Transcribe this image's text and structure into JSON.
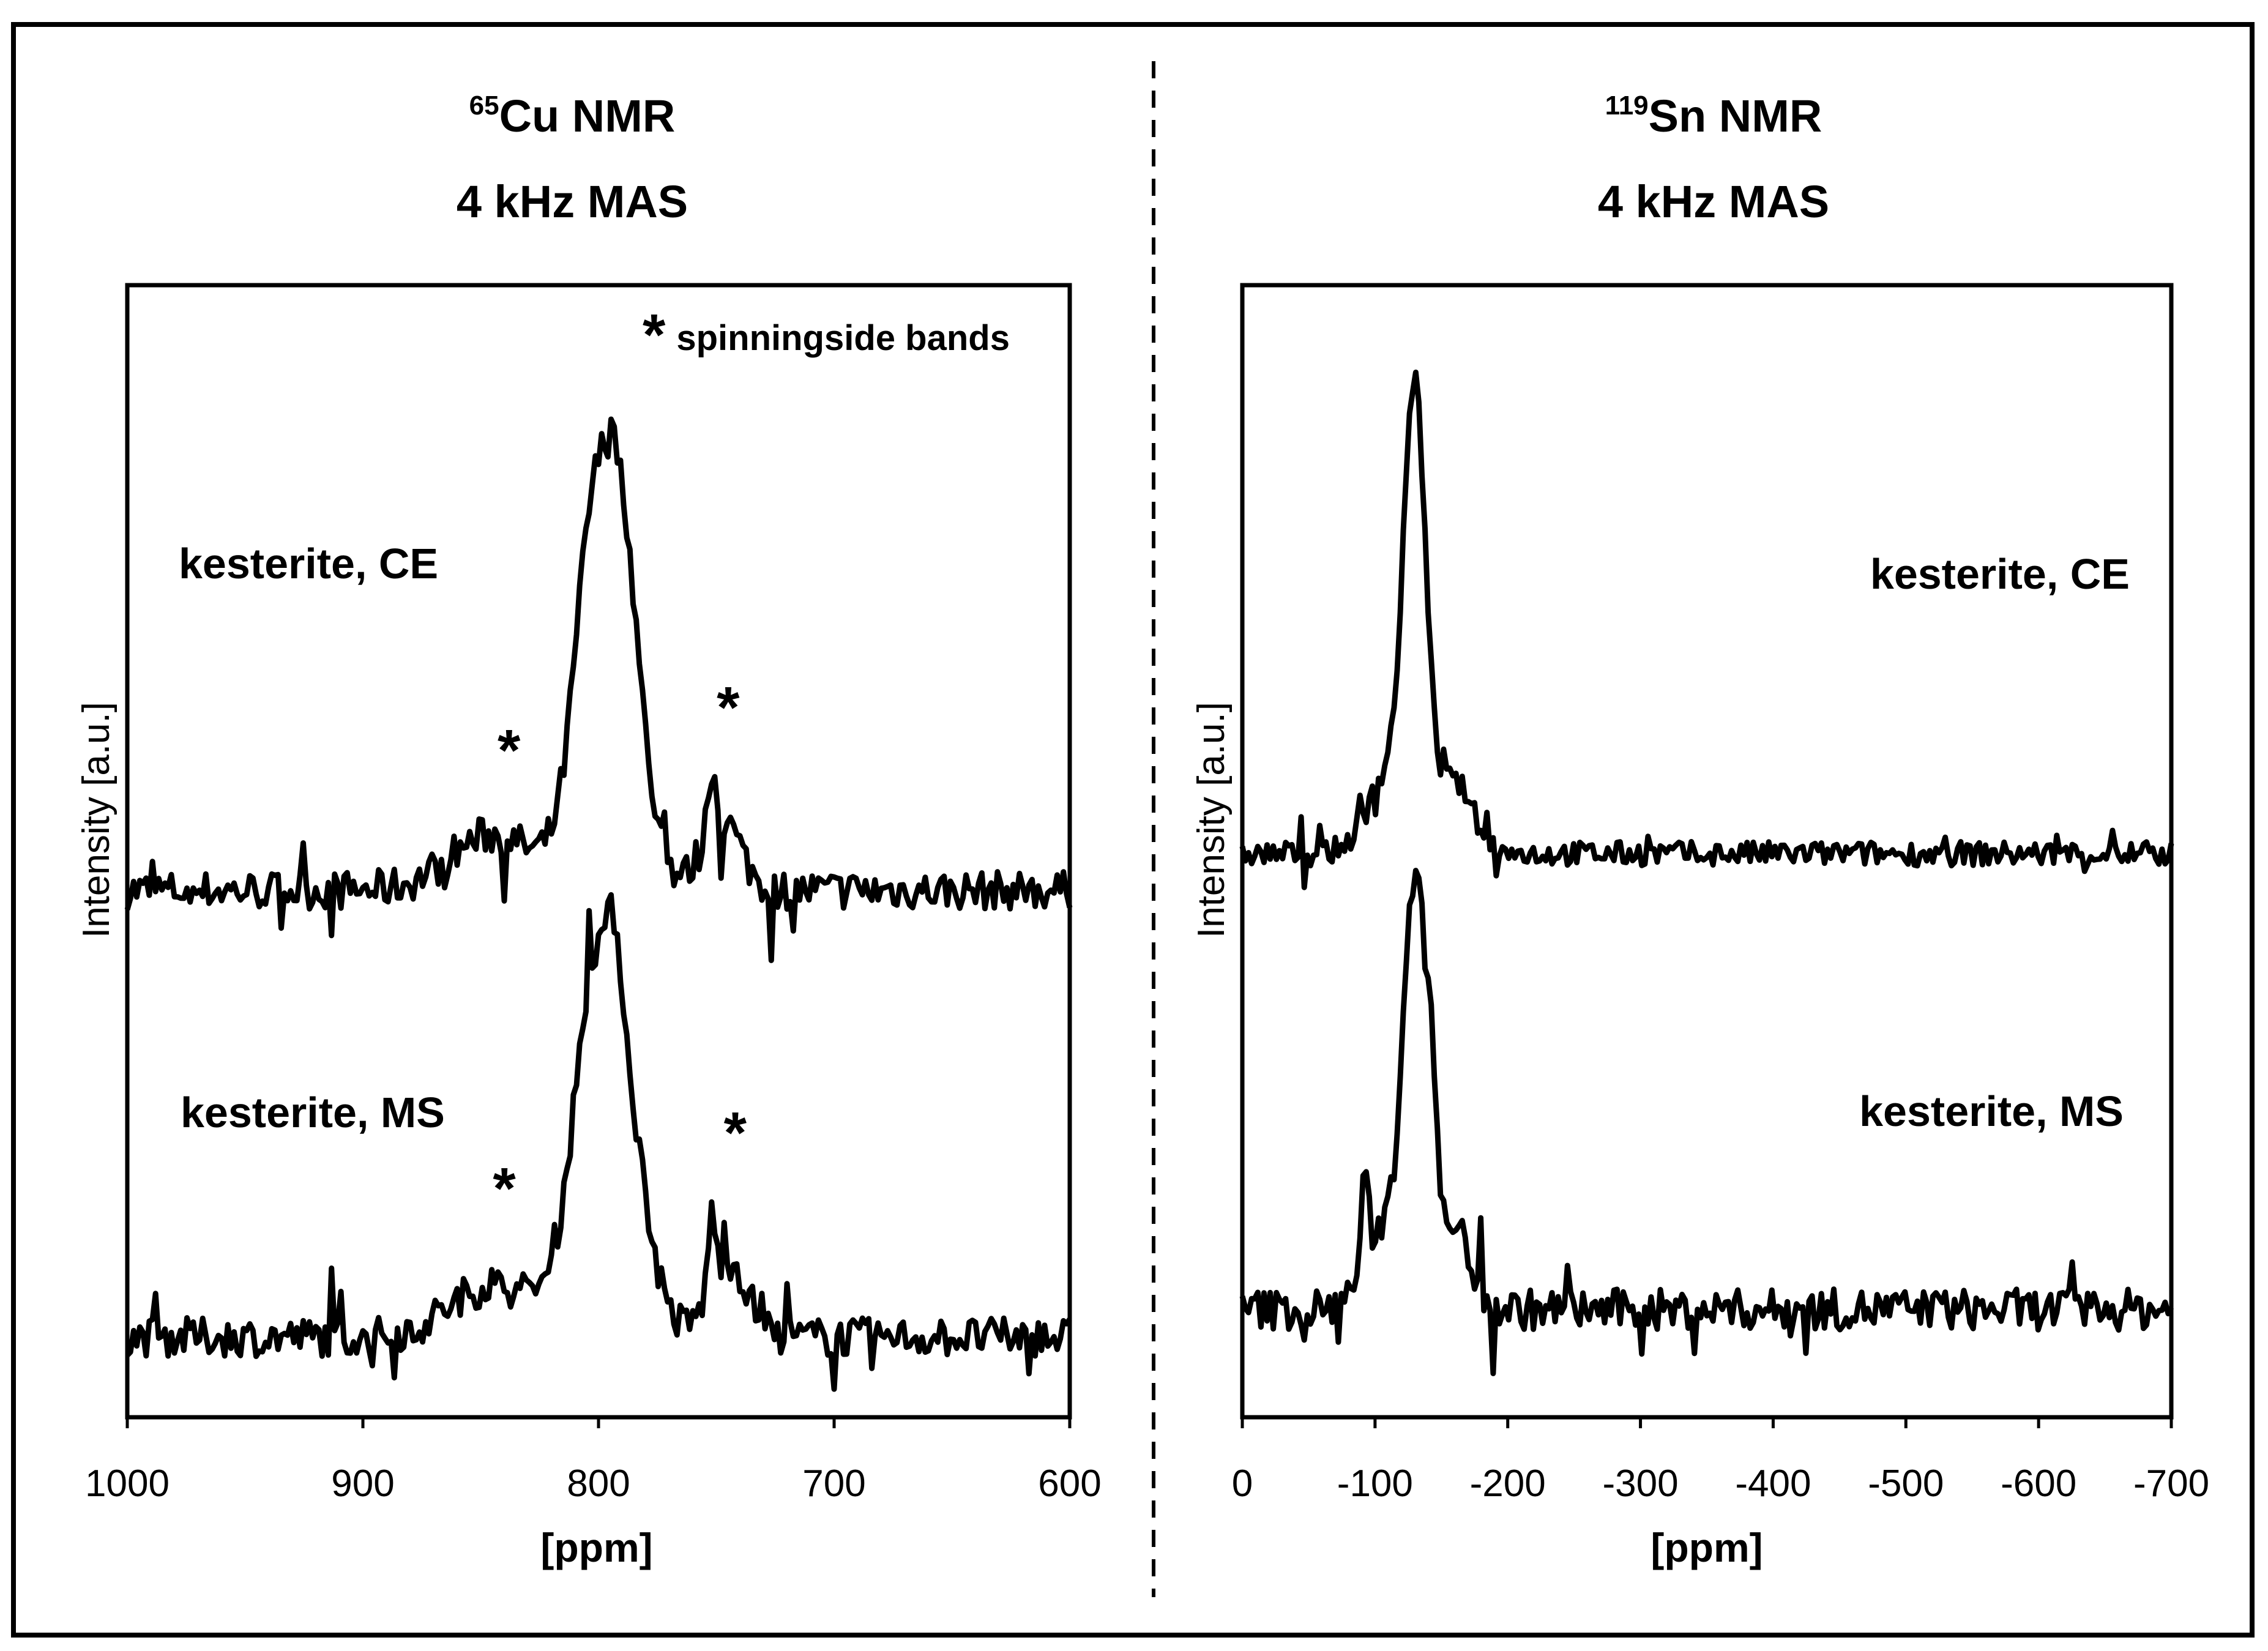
{
  "chart_data": [
    {
      "type": "line",
      "nucleus_mass": "65",
      "nucleus": "Cu NMR",
      "condition": "4 kHz MAS",
      "xlabel": "[ppm]",
      "ylabel": "Intensity [a.u.]",
      "xlim": [
        1000,
        600
      ],
      "xticks": [
        "1000",
        "900",
        "800",
        "700",
        "600"
      ],
      "note_symbol": "*",
      "note": "spinningside bands",
      "series": [
        {
          "name": "kesterite, CE",
          "baseline": 0,
          "peak": {
            "center": 796,
            "width": 11,
            "height": 1.0
          },
          "shoulders": [
            {
              "center": 806,
              "width": 5,
              "height": 0.12
            },
            {
              "center": 789,
              "width": 5,
              "height": 0.1
            }
          ],
          "sidebands": [
            {
              "center": 845,
              "width": 18,
              "height": 0.13
            },
            {
              "center": 748,
              "width": 8,
              "height": 0.17
            },
            {
              "center": 752,
              "width": 1.6,
              "height": 0.14
            }
          ],
          "noise": 0.045,
          "markers": [
            {
              "x": 838,
              "y": 0.28,
              "label": "*"
            },
            {
              "x": 745,
              "y": 0.38,
              "label": "*"
            }
          ]
        },
        {
          "name": "kesterite, MS",
          "baseline": 0,
          "peak": {
            "center": 797,
            "width": 12,
            "height": 0.9
          },
          "shoulders": [
            {
              "center": 793,
              "width": 2.5,
              "height": 0.12
            },
            {
              "center": 805,
              "width": 5,
              "height": 0.08
            }
          ],
          "sidebands": [
            {
              "center": 845,
              "width": 18,
              "height": 0.12
            },
            {
              "center": 745,
              "width": 8,
              "height": 0.18
            },
            {
              "center": 752,
              "width": 1.6,
              "height": 0.16
            }
          ],
          "noise": 0.045,
          "markers": [
            {
              "x": 840,
              "y": 0.3,
              "label": "*"
            },
            {
              "x": 742,
              "y": 0.43,
              "label": "*"
            }
          ]
        }
      ]
    },
    {
      "type": "line",
      "nucleus_mass": "119",
      "nucleus": "Sn NMR",
      "condition": "4 kHz MAS",
      "xlabel": "[ppm]",
      "ylabel": "Intensity [a.u.]",
      "xlim": [
        0,
        -700
      ],
      "xticks": [
        "0",
        "-100",
        "-200",
        "-300",
        "-400",
        "-500",
        "-600",
        "-700"
      ],
      "series": [
        {
          "name": "kesterite, CE",
          "baseline": 0,
          "peak": {
            "center": -130,
            "width": 8,
            "height": 1.0
          },
          "shoulders": [
            {
              "center": -115,
              "width": 18,
              "height": 0.22
            },
            {
              "center": -160,
              "width": 14,
              "height": 0.17
            }
          ],
          "sidebands": [],
          "noise": 0.03
        },
        {
          "name": "kesterite, MS",
          "baseline": 0,
          "peak": {
            "center": -130,
            "width": 8,
            "height": 1.0
          },
          "shoulders": [
            {
              "center": -143,
              "width": 4,
              "height": 0.35
            },
            {
              "center": -110,
              "width": 16,
              "height": 0.22
            },
            {
              "center": -160,
              "width": 12,
              "height": 0.2
            },
            {
              "center": -92,
              "width": 3,
              "height": 0.18
            }
          ],
          "sidebands": [],
          "noise": 0.05
        }
      ]
    }
  ]
}
